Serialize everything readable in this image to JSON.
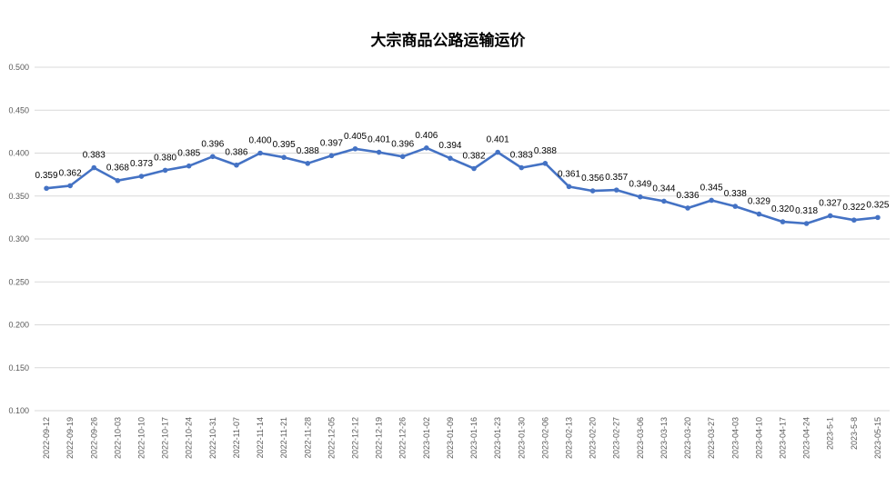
{
  "chart_data": {
    "type": "line",
    "title": "大宗商品公路运输运价",
    "xlabel": "",
    "ylabel": "",
    "ylim": [
      0.1,
      0.5
    ],
    "yticks": [
      "0.100",
      "0.150",
      "0.200",
      "0.250",
      "0.300",
      "0.350",
      "0.400",
      "0.450",
      "0.500"
    ],
    "grid": true,
    "legend": "none",
    "line_color": "#4472C4",
    "categories": [
      "2022-09-12",
      "2022-09-19",
      "2022-09-26",
      "2022-10-03",
      "2022-10-10",
      "2022-10-17",
      "2022-10-24",
      "2022-10-31",
      "2022-11-07",
      "2022-11-14",
      "2022-11-21",
      "2022-11-28",
      "2022-12-05",
      "2022-12-12",
      "2022-12-19",
      "2022-12-26",
      "2023-01-02",
      "2023-01-09",
      "2023-01-16",
      "2023-01-23",
      "2023-01-30",
      "2023-02-06",
      "2023-02-13",
      "2023-02-20",
      "2023-02-27",
      "2023-03-06",
      "2023-03-13",
      "2023-03-20",
      "2023-03-27",
      "2023-04-03",
      "2023-04-10",
      "2023-04-17",
      "2023-04-24",
      "2023-5-1",
      "2023-5-8",
      "2023-05-15"
    ],
    "values": [
      0.359,
      0.362,
      0.383,
      0.368,
      0.373,
      0.38,
      0.385,
      0.396,
      0.386,
      0.4,
      0.395,
      0.388,
      0.397,
      0.405,
      0.401,
      0.396,
      0.406,
      0.394,
      0.382,
      0.401,
      0.383,
      0.388,
      0.361,
      0.356,
      0.357,
      0.349,
      0.344,
      0.336,
      0.345,
      0.338,
      0.329,
      0.32,
      0.318,
      0.327,
      0.322,
      0.325
    ],
    "data_labels": [
      "0.359",
      "0.362",
      "0.383",
      "0.368",
      "0.373",
      "0.380",
      "0.385",
      "0.396",
      "0.386",
      "0.400",
      "0.395",
      "0.388",
      "0.397",
      "0.405",
      "0.401",
      "0.396",
      "0.406",
      "0.394",
      "0.382",
      "0.401",
      "0.383",
      "0.388",
      "0.361",
      "0.356",
      "0.357",
      "0.349",
      "0.344",
      "0.336",
      "0.345",
      "0.338",
      "0.329",
      "0.320",
      "0.318",
      "0.327",
      "0.322",
      "0.325"
    ]
  }
}
